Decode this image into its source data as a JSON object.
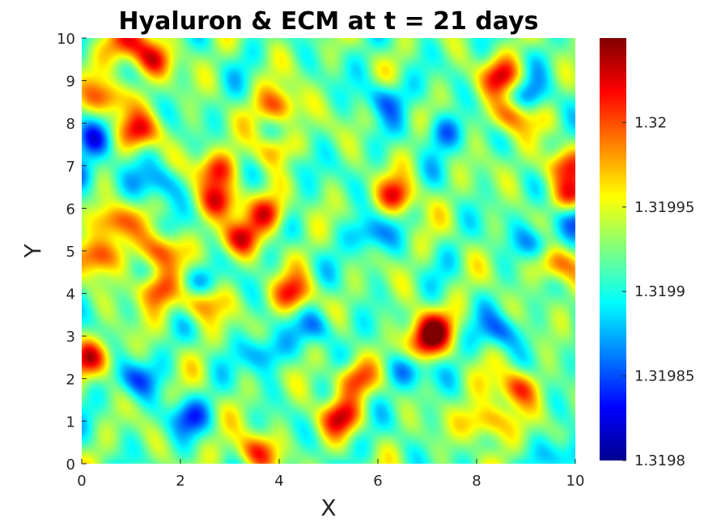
{
  "chart_data": {
    "type": "heatmap",
    "title": "Hyaluron & ECM at t = 21 days",
    "xlabel": "X",
    "ylabel": "Y",
    "xlim": [
      0,
      10
    ],
    "ylim": [
      0,
      10
    ],
    "x_ticks": [
      0,
      2,
      4,
      6,
      8,
      10
    ],
    "y_ticks": [
      0,
      1,
      2,
      3,
      4,
      5,
      6,
      7,
      8,
      9,
      10
    ],
    "x_tick_labels": [
      "0",
      "2",
      "4",
      "6",
      "8",
      "10"
    ],
    "y_tick_labels": [
      "0",
      "1",
      "2",
      "3",
      "4",
      "5",
      "6",
      "7",
      "8",
      "9",
      "10"
    ],
    "colormap": "jet",
    "color_range": [
      1.3198,
      1.32005
    ],
    "colorbar_ticks": [
      1.3198,
      1.31985,
      1.3199,
      1.31995,
      1.32
    ],
    "colorbar_tick_labels": [
      "1.3198",
      "1.31985",
      "1.3199",
      "1.31995",
      "1.32"
    ],
    "background_level": 1.31992,
    "hot_spots": [
      [
        1.2,
        7.8
      ],
      [
        2.8,
        6.2
      ],
      [
        1.6,
        5.0
      ],
      [
        3.9,
        7.3
      ],
      [
        6.4,
        6.3
      ],
      [
        9.6,
        4.7
      ],
      [
        10.0,
        6.3
      ],
      [
        3.5,
        0.3
      ],
      [
        6.9,
        2.8
      ],
      [
        0.3,
        4.9
      ],
      [
        1.5,
        4.1
      ],
      [
        0.6,
        5.7
      ],
      [
        3.2,
        5.3
      ],
      [
        4.0,
        8.4
      ],
      [
        8.7,
        8.2
      ],
      [
        8.5,
        9.1
      ],
      [
        0.9,
        9.9
      ],
      [
        1.4,
        9.5
      ],
      [
        2.7,
        6.9
      ],
      [
        5.2,
        1.1
      ],
      [
        0.2,
        2.5
      ],
      [
        9.7,
        7.0
      ],
      [
        4.3,
        4.0
      ],
      [
        3.8,
        5.9
      ],
      [
        7.1,
        3.2
      ],
      [
        5.5,
        2.0
      ],
      [
        2.4,
        3.8
      ],
      [
        8.2,
        1.0
      ],
      [
        8.8,
        1.8
      ],
      [
        0.5,
        8.6
      ]
    ],
    "cold_spots": [
      [
        0.0,
        6.8
      ],
      [
        6.6,
        2.2
      ],
      [
        9.9,
        5.8
      ],
      [
        9.9,
        0.2
      ],
      [
        0.3,
        7.6
      ],
      [
        4.1,
        7.1
      ],
      [
        9.2,
        5.2
      ],
      [
        2.3,
        4.2
      ],
      [
        5.8,
        5.4
      ],
      [
        7.3,
        7.8
      ],
      [
        1.6,
        6.6
      ],
      [
        4.8,
        3.2
      ],
      [
        8.5,
        3.1
      ],
      [
        3.7,
        2.6
      ],
      [
        6.1,
        8.6
      ],
      [
        2.1,
        1.1
      ],
      [
        1.1,
        2.0
      ],
      [
        9.1,
        8.6
      ]
    ]
  }
}
